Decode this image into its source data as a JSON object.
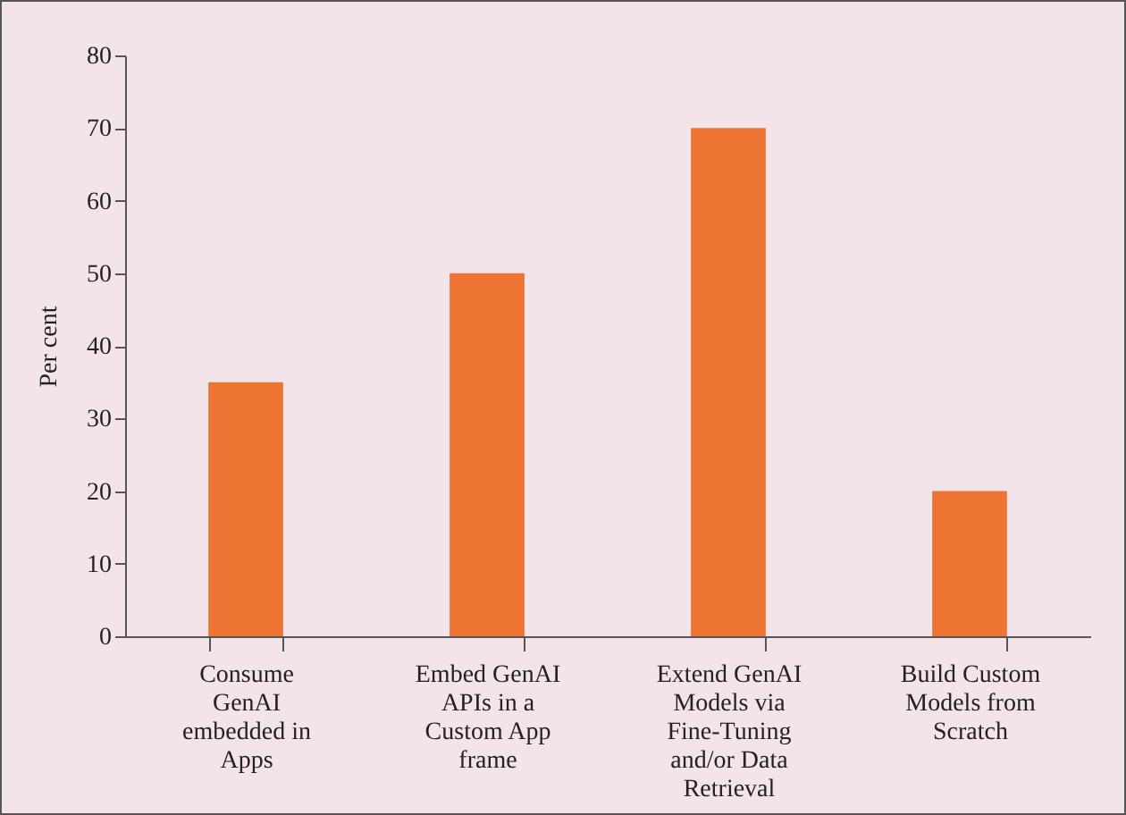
{
  "chart_data": {
    "type": "bar",
    "ylabel": "Per cent",
    "categories": [
      "Consume GenAI embedded in Apps",
      "Embed GenAI APIs in a Custom App frame",
      "Extend GenAI Models via Fine-Tuning and/or Data Retrieval",
      "Build Custom Models from Scratch"
    ],
    "values": [
      35,
      50,
      70,
      20
    ],
    "color": "#ed7432",
    "ylim": [
      0,
      80
    ],
    "yticks": [
      0,
      10,
      20,
      30,
      40,
      50,
      60,
      70,
      80
    ],
    "grid": false
  }
}
